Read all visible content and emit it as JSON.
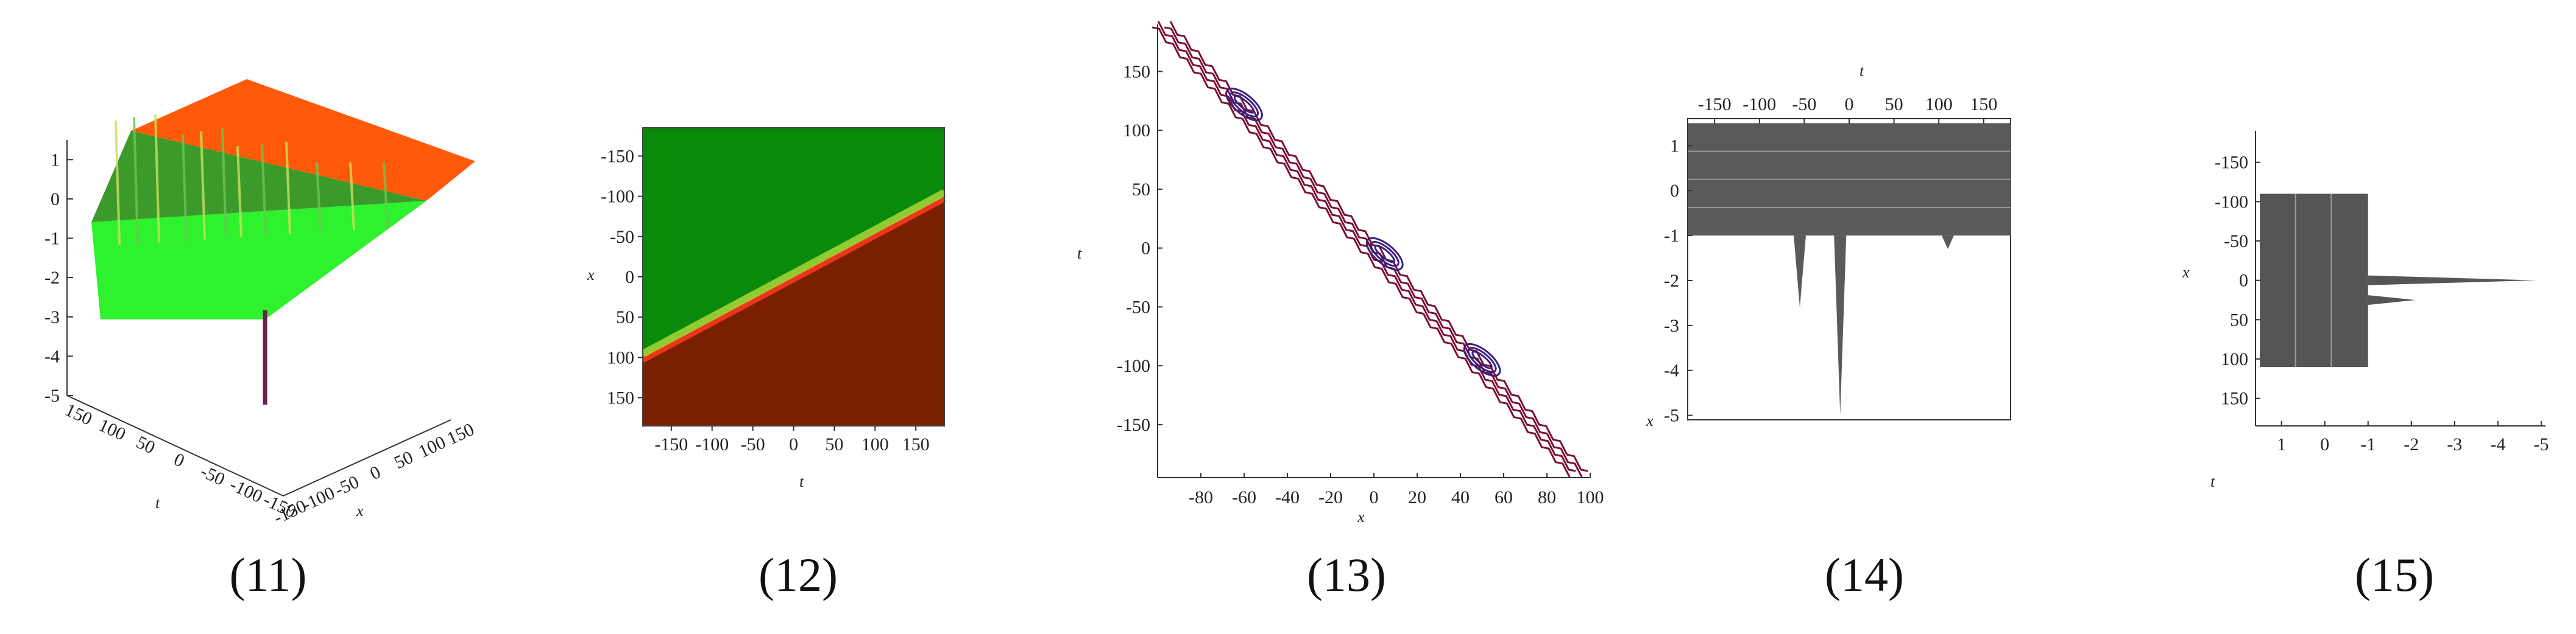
{
  "colors": {
    "p11_top": "#ff5a0a",
    "p11_bottom": "#2ef22e",
    "p12_green": "#0a8a0a",
    "p12_brown": "#7a2000",
    "p13_contour": "#7a1030",
    "p13_peak": "#3a2080",
    "p14_fill": "#5a5a5a",
    "p15_fill": "#555555"
  },
  "chart_data": [
    {
      "id": "11",
      "type": "surface3d",
      "caption": "(11)",
      "xlabel": "x",
      "ylabel": "t",
      "x_ticks": [
        "-150",
        "-100",
        "-50",
        "0",
        "50",
        "100",
        "150"
      ],
      "t_ticks": [
        "150",
        "100",
        "50",
        "0",
        "-50",
        "-100",
        "-150"
      ],
      "z_ticks": [
        "1",
        "0",
        "-1",
        "-2",
        "-3",
        "-4",
        "-5"
      ],
      "zlim": [
        -5,
        1.5
      ],
      "plateau_high": 1.0,
      "plateau_low": -1.0,
      "spike_min": -5.0
    },
    {
      "id": "12",
      "type": "heatmap",
      "caption": "(12)",
      "xlabel": "t",
      "ylabel": "x",
      "x_ticks": [
        "-150",
        "-100",
        "-50",
        "0",
        "50",
        "100",
        "150"
      ],
      "y_ticks": [
        "-150",
        "-100",
        "-50",
        "0",
        "50",
        "100",
        "150"
      ],
      "xlim": [
        -185,
        185
      ],
      "ylim": [
        -185,
        185
      ],
      "front_line": {
        "t": [
          -185,
          185
        ],
        "x": [
          100,
          -100
        ]
      }
    },
    {
      "id": "13",
      "type": "contour",
      "caption": "(13)",
      "xlabel": "x",
      "ylabel": "t",
      "x_ticks": [
        "-80",
        "-60",
        "-40",
        "-20",
        "0",
        "20",
        "40",
        "60",
        "80",
        "100"
      ],
      "y_ticks": [
        "150",
        "100",
        "50",
        "0",
        "-50",
        "-100",
        "-150"
      ],
      "xlim": [
        -100,
        100
      ],
      "ylim": [
        -195,
        190
      ],
      "line": {
        "x": [
          -98,
          95
        ],
        "t": [
          190,
          -192
        ]
      },
      "peaks": [
        {
          "x": -60,
          "t": 122
        },
        {
          "x": 5,
          "t": -5
        },
        {
          "x": 50,
          "t": -95
        }
      ]
    },
    {
      "id": "14",
      "type": "surface_projection",
      "caption": "(14)",
      "xlabel": "t",
      "ylabel": "x",
      "t_ticks": [
        "-150",
        "-100",
        "-50",
        "0",
        "50",
        "100",
        "150"
      ],
      "z_ticks": [
        "1",
        "0",
        "-1",
        "-2",
        "-3",
        "-4",
        "-5"
      ],
      "tlim": [
        -180,
        180
      ],
      "zlim": [
        -5.1,
        1.6
      ],
      "band": [
        -1,
        1.5
      ],
      "spikes": [
        {
          "t": -55,
          "depth": -2.6
        },
        {
          "t": -10,
          "depth": -5.0
        },
        {
          "t": 110,
          "depth": -1.3
        }
      ]
    },
    {
      "id": "15",
      "type": "surface_projection",
      "caption": "(15)",
      "xlabel": "t",
      "ylabel": "x",
      "z_ticks": [
        "1",
        "0",
        "-1",
        "-2",
        "-3",
        "-4",
        "-5"
      ],
      "x_ticks": [
        "-150",
        "-100",
        "-50",
        "0",
        "50",
        "100",
        "150"
      ],
      "zlim": [
        1.6,
        -5.1
      ],
      "xlim": [
        -190,
        185
      ],
      "band": [
        1.5,
        -1
      ],
      "spikes": [
        {
          "x": 0,
          "depth": -4.9
        },
        {
          "x": 25,
          "depth": -2.1
        }
      ]
    }
  ]
}
